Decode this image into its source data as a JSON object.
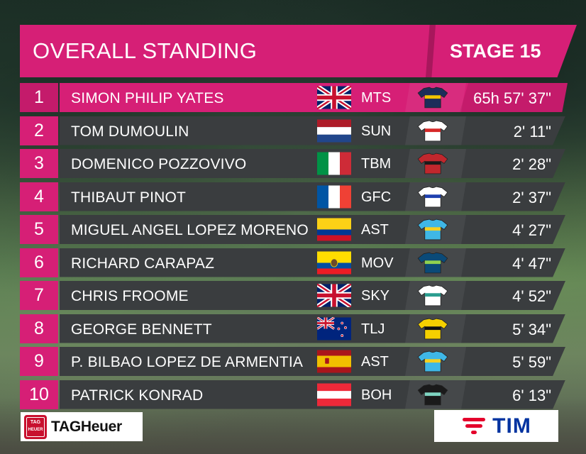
{
  "header": {
    "title": "OVERALL STANDING",
    "stage": "STAGE 15"
  },
  "colors": {
    "accent": "#d61f76",
    "row_bg": "#3a3d3f",
    "text": "#ffffff"
  },
  "standings": [
    {
      "pos": "1",
      "name": "SIMON PHILIP YATES",
      "flag": "gb-flag",
      "team": "MTS",
      "jersey": "mitchelton-jersey",
      "time": "65h 57' 37\""
    },
    {
      "pos": "2",
      "name": "TOM DUMOULIN",
      "flag": "nl-flag",
      "team": "SUN",
      "jersey": "sunweb-jersey",
      "time": "2' 11\""
    },
    {
      "pos": "3",
      "name": "DOMENICO POZZOVIVO",
      "flag": "it-flag",
      "team": "TBM",
      "jersey": "bahrain-jersey",
      "time": "2' 28\""
    },
    {
      "pos": "4",
      "name": "THIBAUT PINOT",
      "flag": "fr-flag",
      "team": "GFC",
      "jersey": "fdj-jersey",
      "time": "2' 37\""
    },
    {
      "pos": "5",
      "name": "MIGUEL ANGEL LOPEZ MORENO",
      "flag": "co-flag",
      "team": "AST",
      "jersey": "astana-jersey",
      "time": "4' 27\""
    },
    {
      "pos": "6",
      "name": "RICHARD CARAPAZ",
      "flag": "ec-flag",
      "team": "MOV",
      "jersey": "movistar-jersey",
      "time": "4' 47\""
    },
    {
      "pos": "7",
      "name": "CHRIS FROOME",
      "flag": "gb-flag",
      "team": "SKY",
      "jersey": "sky-jersey",
      "time": "4' 52\""
    },
    {
      "pos": "8",
      "name": "GEORGE BENNETT",
      "flag": "nz-flag",
      "team": "TLJ",
      "jersey": "lottonl-jersey",
      "time": "5' 34\""
    },
    {
      "pos": "9",
      "name": "P. BILBAO LOPEZ DE ARMENTIA",
      "flag": "es-flag",
      "team": "AST",
      "jersey": "astana-jersey",
      "time": "5' 59\""
    },
    {
      "pos": "10",
      "name": "PATRICK KONRAD",
      "flag": "at-flag",
      "team": "BOH",
      "jersey": "bora-jersey",
      "time": "6' 13\""
    }
  ],
  "sponsors": {
    "left_logo": "TAGHeuer",
    "left_shield_line1": "TAG",
    "left_shield_line2": "HEUER",
    "right_logo": "TIM"
  }
}
